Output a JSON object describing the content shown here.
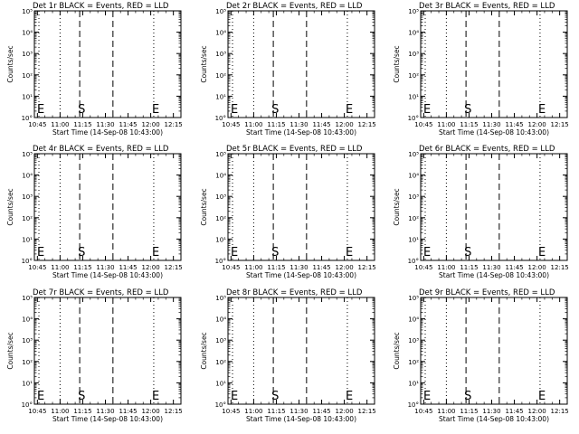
{
  "figure": {
    "xlabel": "Start Time (14-Sep-08 10:43:00)",
    "ylabel": "Counts/sec"
  },
  "chart_data": [
    {
      "type": "line",
      "title": "Det 1r BLACK = Events, RED = LLD",
      "xlabel": "Start Time (14-Sep-08 10:43:00)",
      "ylabel": "Counts/sec",
      "x_tick_labels": [
        "10:45",
        "11:00",
        "11:15",
        "11:30",
        "11:45",
        "12:00",
        "12:15"
      ],
      "y_tick_labels": [
        "10°",
        "10¹",
        "10²",
        "10³",
        "10⁴",
        "10⁵"
      ],
      "y_scale": "log",
      "ylim": [
        1,
        100000
      ],
      "xlim": [
        "10:43",
        "12:20"
      ],
      "series": [],
      "markers": [
        {
          "time": "10:46",
          "style": "dotted",
          "label": "E"
        },
        {
          "time": "11:00",
          "style": "dotted",
          "label": ""
        },
        {
          "time": "11:13",
          "style": "dashed",
          "label": "S"
        },
        {
          "time": "11:35",
          "style": "dashed",
          "label": ""
        },
        {
          "time": "12:02",
          "style": "dotted",
          "label": "E"
        },
        {
          "time": "12:20",
          "style": "dotted",
          "label": ""
        }
      ]
    },
    {
      "type": "line",
      "title": "Det 2r BLACK = Events, RED = LLD",
      "xlabel": "Start Time (14-Sep-08 10:43:00)",
      "ylabel": "Counts/sec",
      "x_tick_labels": [
        "10:45",
        "11:00",
        "11:15",
        "11:30",
        "11:45",
        "12:00",
        "12:15"
      ],
      "y_tick_labels": [
        "10°",
        "10¹",
        "10²",
        "10³",
        "10⁴",
        "10⁵"
      ],
      "y_scale": "log",
      "ylim": [
        1,
        100000
      ],
      "xlim": [
        "10:43",
        "12:20"
      ],
      "series": [],
      "markers": [
        {
          "time": "10:46",
          "style": "dotted",
          "label": "E"
        },
        {
          "time": "11:00",
          "style": "dotted",
          "label": ""
        },
        {
          "time": "11:13",
          "style": "dashed",
          "label": "S"
        },
        {
          "time": "11:35",
          "style": "dashed",
          "label": ""
        },
        {
          "time": "12:02",
          "style": "dotted",
          "label": "E"
        },
        {
          "time": "12:20",
          "style": "dotted",
          "label": ""
        }
      ]
    },
    {
      "type": "line",
      "title": "Det 3r BLACK = Events, RED = LLD",
      "xlabel": "Start Time (14-Sep-08 10:43:00)",
      "ylabel": "Counts/sec",
      "x_tick_labels": [
        "10:45",
        "11:00",
        "11:15",
        "11:30",
        "11:45",
        "12:00",
        "12:15"
      ],
      "y_tick_labels": [
        "10°",
        "10¹",
        "10²",
        "10³",
        "10⁴",
        "10⁵"
      ],
      "y_scale": "log",
      "ylim": [
        1,
        100000
      ],
      "xlim": [
        "10:43",
        "12:20"
      ],
      "series": [],
      "markers": [
        {
          "time": "10:46",
          "style": "dotted",
          "label": "E"
        },
        {
          "time": "11:00",
          "style": "dotted",
          "label": ""
        },
        {
          "time": "11:13",
          "style": "dashed",
          "label": "S"
        },
        {
          "time": "11:35",
          "style": "dashed",
          "label": ""
        },
        {
          "time": "12:02",
          "style": "dotted",
          "label": "E"
        },
        {
          "time": "12:20",
          "style": "dotted",
          "label": ""
        }
      ]
    },
    {
      "type": "line",
      "title": "Det 4r BLACK = Events, RED = LLD",
      "xlabel": "Start Time (14-Sep-08 10:43:00)",
      "ylabel": "Counts/sec",
      "x_tick_labels": [
        "10:45",
        "11:00",
        "11:15",
        "11:30",
        "11:45",
        "12:00",
        "12:15"
      ],
      "y_tick_labels": [
        "10°",
        "10¹",
        "10²",
        "10³",
        "10⁴",
        "10⁵"
      ],
      "y_scale": "log",
      "ylim": [
        1,
        100000
      ],
      "xlim": [
        "10:43",
        "12:20"
      ],
      "series": [],
      "markers": [
        {
          "time": "10:46",
          "style": "dotted",
          "label": "E"
        },
        {
          "time": "11:00",
          "style": "dotted",
          "label": ""
        },
        {
          "time": "11:13",
          "style": "dashed",
          "label": "S"
        },
        {
          "time": "11:35",
          "style": "dashed",
          "label": ""
        },
        {
          "time": "12:02",
          "style": "dotted",
          "label": "E"
        },
        {
          "time": "12:20",
          "style": "dotted",
          "label": ""
        }
      ]
    },
    {
      "type": "line",
      "title": "Det 5r BLACK = Events, RED = LLD",
      "xlabel": "Start Time (14-Sep-08 10:43:00)",
      "ylabel": "Counts/sec",
      "x_tick_labels": [
        "10:45",
        "11:00",
        "11:15",
        "11:30",
        "11:45",
        "12:00",
        "12:15"
      ],
      "y_tick_labels": [
        "10°",
        "10¹",
        "10²",
        "10³",
        "10⁴",
        "10⁵"
      ],
      "y_scale": "log",
      "ylim": [
        1,
        100000
      ],
      "xlim": [
        "10:43",
        "12:20"
      ],
      "series": [],
      "markers": [
        {
          "time": "10:46",
          "style": "dotted",
          "label": "E"
        },
        {
          "time": "11:00",
          "style": "dotted",
          "label": ""
        },
        {
          "time": "11:13",
          "style": "dashed",
          "label": "S"
        },
        {
          "time": "11:35",
          "style": "dashed",
          "label": ""
        },
        {
          "time": "12:02",
          "style": "dotted",
          "label": "E"
        },
        {
          "time": "12:20",
          "style": "dotted",
          "label": ""
        }
      ]
    },
    {
      "type": "line",
      "title": "Det 6r BLACK = Events, RED = LLD",
      "xlabel": "Start Time (14-Sep-08 10:43:00)",
      "ylabel": "Counts/sec",
      "x_tick_labels": [
        "10:45",
        "11:00",
        "11:15",
        "11:30",
        "11:45",
        "12:00",
        "12:15"
      ],
      "y_tick_labels": [
        "10°",
        "10¹",
        "10²",
        "10³",
        "10⁴",
        "10⁵"
      ],
      "y_scale": "log",
      "ylim": [
        1,
        100000
      ],
      "xlim": [
        "10:43",
        "12:20"
      ],
      "series": [],
      "markers": [
        {
          "time": "10:46",
          "style": "dotted",
          "label": "E"
        },
        {
          "time": "11:00",
          "style": "dotted",
          "label": ""
        },
        {
          "time": "11:13",
          "style": "dashed",
          "label": "S"
        },
        {
          "time": "11:35",
          "style": "dashed",
          "label": ""
        },
        {
          "time": "12:02",
          "style": "dotted",
          "label": "E"
        },
        {
          "time": "12:20",
          "style": "dotted",
          "label": ""
        }
      ]
    },
    {
      "type": "line",
      "title": "Det 7r BLACK = Events, RED = LLD",
      "xlabel": "Start Time (14-Sep-08 10:43:00)",
      "ylabel": "Counts/sec",
      "x_tick_labels": [
        "10:45",
        "11:00",
        "11:15",
        "11:30",
        "11:45",
        "12:00",
        "12:15"
      ],
      "y_tick_labels": [
        "10°",
        "10¹",
        "10²",
        "10³",
        "10⁴",
        "10⁵"
      ],
      "y_scale": "log",
      "ylim": [
        1,
        100000
      ],
      "xlim": [
        "10:43",
        "12:20"
      ],
      "series": [],
      "markers": [
        {
          "time": "10:46",
          "style": "dotted",
          "label": "E"
        },
        {
          "time": "11:00",
          "style": "dotted",
          "label": ""
        },
        {
          "time": "11:13",
          "style": "dashed",
          "label": "S"
        },
        {
          "time": "11:35",
          "style": "dashed",
          "label": ""
        },
        {
          "time": "12:02",
          "style": "dotted",
          "label": "E"
        },
        {
          "time": "12:20",
          "style": "dotted",
          "label": ""
        }
      ]
    },
    {
      "type": "line",
      "title": "Det 8r BLACK = Events, RED = LLD",
      "xlabel": "Start Time (14-Sep-08 10:43:00)",
      "ylabel": "Counts/sec",
      "x_tick_labels": [
        "10:45",
        "11:00",
        "11:15",
        "11:30",
        "11:45",
        "12:00",
        "12:15"
      ],
      "y_tick_labels": [
        "10°",
        "10¹",
        "10²",
        "10³",
        "10⁴",
        "10⁵"
      ],
      "y_scale": "log",
      "ylim": [
        1,
        100000
      ],
      "xlim": [
        "10:43",
        "12:20"
      ],
      "series": [],
      "markers": [
        {
          "time": "10:46",
          "style": "dotted",
          "label": "E"
        },
        {
          "time": "11:00",
          "style": "dotted",
          "label": ""
        },
        {
          "time": "11:13",
          "style": "dashed",
          "label": "S"
        },
        {
          "time": "11:35",
          "style": "dashed",
          "label": ""
        },
        {
          "time": "12:02",
          "style": "dotted",
          "label": "E"
        },
        {
          "time": "12:20",
          "style": "dotted",
          "label": ""
        }
      ]
    },
    {
      "type": "line",
      "title": "Det 9r BLACK = Events, RED = LLD",
      "xlabel": "Start Time (14-Sep-08 10:43:00)",
      "ylabel": "Counts/sec",
      "x_tick_labels": [
        "10:45",
        "11:00",
        "11:15",
        "11:30",
        "11:45",
        "12:00",
        "12:15"
      ],
      "y_tick_labels": [
        "10°",
        "10¹",
        "10²",
        "10³",
        "10⁴",
        "10⁵"
      ],
      "y_scale": "log",
      "ylim": [
        1,
        100000
      ],
      "xlim": [
        "10:43",
        "12:20"
      ],
      "series": [],
      "markers": [
        {
          "time": "10:46",
          "style": "dotted",
          "label": "E"
        },
        {
          "time": "11:00",
          "style": "dotted",
          "label": ""
        },
        {
          "time": "11:13",
          "style": "dashed",
          "label": "S"
        },
        {
          "time": "11:35",
          "style": "dashed",
          "label": ""
        },
        {
          "time": "12:02",
          "style": "dotted",
          "label": "E"
        },
        {
          "time": "12:20",
          "style": "dotted",
          "label": ""
        }
      ]
    }
  ]
}
